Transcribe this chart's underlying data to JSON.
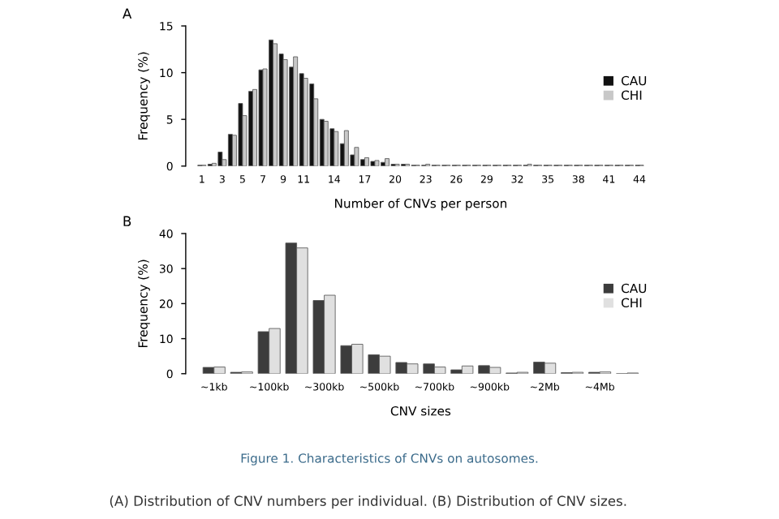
{
  "chart_data": [
    {
      "type": "bar",
      "title": "A",
      "xlabel": "Number of CNVs per person",
      "ylabel": "Frequency (%)",
      "categories": [
        "1",
        null,
        "3",
        null,
        "5",
        null,
        "7",
        null,
        "9",
        null,
        "11",
        null,
        null,
        "14",
        null,
        null,
        "17",
        null,
        null,
        "20",
        null,
        null,
        "23",
        null,
        null,
        "26",
        null,
        null,
        "29",
        null,
        null,
        "32",
        null,
        null,
        "35",
        null,
        null,
        "38",
        null,
        null,
        "41",
        null,
        null,
        "44"
      ],
      "series": [
        {
          "name": "CAU",
          "color": "#111111",
          "values": [
            0.1,
            0.2,
            1.5,
            3.4,
            6.7,
            8.0,
            10.3,
            13.5,
            12.0,
            10.6,
            9.9,
            8.8,
            5.0,
            4.0,
            2.4,
            1.2,
            0.7,
            0.5,
            0.4,
            0.2,
            0.2,
            0.1,
            0.1,
            0.1,
            0.1,
            0.1,
            0.1,
            0.1,
            0.1,
            0.1,
            0.1,
            0.1,
            0.1,
            0.1,
            0.1,
            0.1,
            0.1,
            0.1,
            0.1,
            0.1,
            0.1,
            0.1,
            0.1,
            0.1
          ]
        },
        {
          "name": "CHI",
          "color": "#c8c8c8",
          "values": [
            0.1,
            0.3,
            0.7,
            3.3,
            5.4,
            8.2,
            10.4,
            13.1,
            11.4,
            11.7,
            9.4,
            7.2,
            4.8,
            3.7,
            3.8,
            2.0,
            0.9,
            0.6,
            0.8,
            0.2,
            0.2,
            0.1,
            0.2,
            0.1,
            0.1,
            0.1,
            0.1,
            0.1,
            0.1,
            0.1,
            0.1,
            0.1,
            0.2,
            0.1,
            0.1,
            0.1,
            0.1,
            0.1,
            0.1,
            0.1,
            0.1,
            0.1,
            0.1,
            0.1
          ]
        }
      ],
      "ylim": [
        0,
        15
      ],
      "yticks": [
        0,
        5,
        10,
        15
      ],
      "grid": false,
      "legend": "right"
    },
    {
      "type": "bar",
      "title": "B",
      "xlabel": "CNV sizes",
      "ylabel": "Frequency (%)",
      "categories": [
        "~1kb",
        null,
        "~100kb",
        null,
        "~300kb",
        null,
        "~500kb",
        null,
        "~700kb",
        null,
        "~900kb",
        null,
        "~2Mb",
        null,
        "~4Mb",
        null
      ],
      "series": [
        {
          "name": "CAU",
          "color": "#3c3c3c",
          "values": [
            1.8,
            0.4,
            12.0,
            37.3,
            20.9,
            8.0,
            5.4,
            3.2,
            2.8,
            1.1,
            2.3,
            0.2,
            3.3,
            0.3,
            0.4,
            null
          ]
        },
        {
          "name": "CHI",
          "color": "#e0e0e0",
          "values": [
            1.9,
            0.5,
            12.9,
            35.9,
            22.4,
            8.4,
            5.0,
            2.8,
            1.9,
            2.2,
            1.8,
            0.4,
            3.0,
            0.4,
            0.5,
            0.2
          ]
        }
      ],
      "ylim": [
        0,
        40
      ],
      "yticks": [
        0,
        10,
        20,
        30,
        40
      ],
      "grid": false,
      "legend": "right",
      "annotations": [
        "Figure 1. Characteristics of CNVs on autosomes.",
        "(A) Distribution of CNV numbers per individual. (B) Distribution of CNV sizes."
      ]
    }
  ]
}
